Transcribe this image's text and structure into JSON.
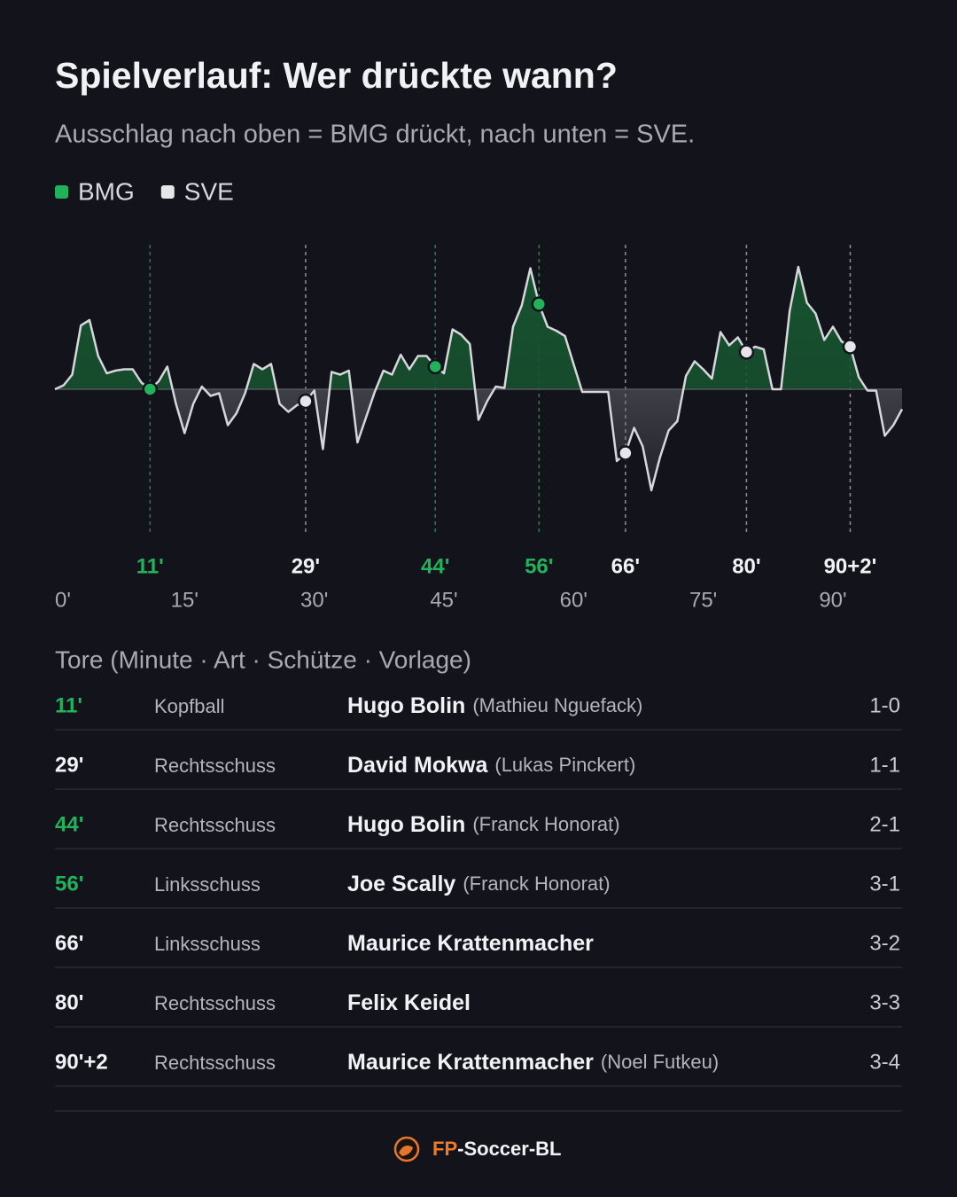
{
  "chart_data": {
    "type": "momentum",
    "title": "Spielverlauf: Wer drückte wann?",
    "subtitle": "Ausschlag nach oben = BMG drückt, nach unten = SVE.",
    "legend": [
      {
        "name": "BMG",
        "color": "#21b25c"
      },
      {
        "name": "SVE",
        "color": "#e6e6ea"
      }
    ],
    "line_color": "#d6d6dc",
    "positive_fill": "#16532f",
    "negative_fill": "#6c6d74",
    "x": [
      0,
      1,
      2,
      3,
      4,
      5,
      6,
      7,
      8,
      9,
      10,
      11,
      12,
      13,
      14,
      15,
      16,
      17,
      18,
      19,
      20,
      21,
      22,
      23,
      24,
      25,
      26,
      27,
      28,
      29,
      30,
      31,
      32,
      33,
      34,
      35,
      36,
      37,
      38,
      39,
      40,
      41,
      42,
      43,
      44,
      45,
      46,
      47,
      48,
      49,
      50,
      51,
      52,
      53,
      54,
      55,
      56,
      57,
      58,
      59,
      60,
      61,
      62,
      63,
      64,
      65,
      66,
      67,
      68,
      69,
      70,
      71,
      72,
      73,
      74,
      75,
      76,
      77,
      78,
      79,
      80,
      81,
      82,
      83,
      84,
      85,
      86,
      87,
      88,
      89,
      90,
      91,
      92,
      93,
      94,
      95,
      96,
      97,
      98
    ],
    "values": [
      0,
      3,
      11,
      48,
      52,
      25,
      12,
      14,
      15,
      15,
      5,
      0,
      6,
      17,
      -11,
      -33,
      -11,
      2,
      -5,
      -3,
      -27,
      -18,
      -3,
      19,
      15,
      19,
      -11,
      -17,
      -12,
      -9,
      -1,
      -45,
      13,
      11,
      14,
      -40,
      -21,
      -2,
      14,
      11,
      26,
      15,
      25,
      25,
      17,
      12,
      45,
      41,
      34,
      -23,
      -9,
      2,
      1,
      47,
      63,
      91,
      64,
      47,
      44,
      40,
      19,
      -2,
      -2,
      -2,
      -2,
      -54,
      -48,
      -29,
      -43,
      -76,
      -51,
      -31,
      -24,
      10,
      21,
      15,
      8,
      43,
      33,
      39,
      28,
      32,
      30,
      0,
      0,
      59,
      92,
      65,
      57,
      37,
      47,
      36,
      32,
      9,
      -1,
      -1,
      -35,
      -27,
      -15
    ],
    "xlim": [
      0,
      98
    ],
    "ylim": [
      -100,
      100
    ],
    "xticks": [
      {
        "value": 0,
        "label": "0'"
      },
      {
        "value": 15,
        "label": "15'"
      },
      {
        "value": 30,
        "label": "30'"
      },
      {
        "value": 45,
        "label": "45'"
      },
      {
        "value": 60,
        "label": "60'"
      },
      {
        "value": 75,
        "label": "75'"
      },
      {
        "value": 90,
        "label": "90'"
      }
    ],
    "goals": [
      {
        "minute": 11,
        "label": "11'",
        "team": "BMG"
      },
      {
        "minute": 29,
        "label": "29'",
        "team": "SVE"
      },
      {
        "minute": 44,
        "label": "44'",
        "team": "BMG"
      },
      {
        "minute": 56,
        "label": "56'",
        "team": "BMG"
      },
      {
        "minute": 66,
        "label": "66'",
        "team": "SVE"
      },
      {
        "minute": 80,
        "label": "80'",
        "team": "SVE"
      },
      {
        "minute": 92,
        "label": "90+2'",
        "team": "SVE"
      }
    ]
  },
  "table": {
    "title": "Tore (Minute · Art · Schütze · Vorlage)",
    "rows": [
      {
        "minute": "11'",
        "team": "BMG",
        "type": "Kopfball",
        "scorer": "Hugo Bolin",
        "assist": "(Mathieu Nguefack)",
        "score": "1-0"
      },
      {
        "minute": "29'",
        "team": "SVE",
        "type": "Rechtsschuss",
        "scorer": "David Mokwa",
        "assist": "(Lukas Pinckert)",
        "score": "1-1"
      },
      {
        "minute": "44'",
        "team": "BMG",
        "type": "Rechtsschuss",
        "scorer": "Hugo Bolin",
        "assist": "(Franck Honorat)",
        "score": "2-1"
      },
      {
        "minute": "56'",
        "team": "BMG",
        "type": "Linksschuss",
        "scorer": "Joe Scally",
        "assist": "(Franck Honorat)",
        "score": "3-1"
      },
      {
        "minute": "66'",
        "team": "SVE",
        "type": "Linksschuss",
        "scorer": "Maurice Krattenmacher",
        "score": "3-2"
      },
      {
        "minute": "80'",
        "team": "SVE",
        "type": "Rechtsschuss",
        "scorer": "Felix Keidel",
        "score": "3-3"
      },
      {
        "minute": "90'+2",
        "team": "SVE",
        "type": "Rechtsschuss",
        "scorer": "Maurice Krattenmacher",
        "assist": "(Noel Futkeu)",
        "score": "3-4"
      }
    ]
  },
  "footer": {
    "brand_prefix": "FP",
    "brand_rest": "-Soccer-BL"
  }
}
